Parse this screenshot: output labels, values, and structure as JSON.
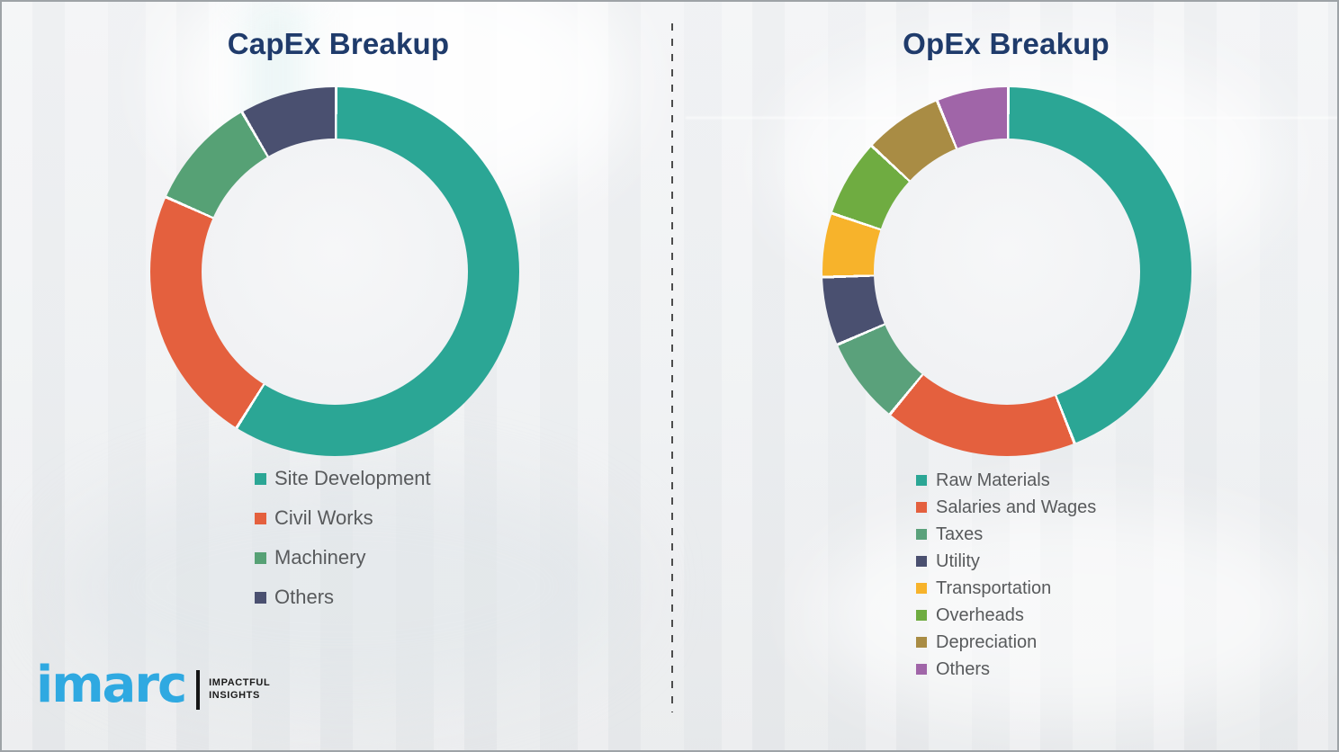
{
  "chart_data": [
    {
      "type": "pie",
      "subtype": "donut",
      "title": "CapEx Breakup",
      "labels": [
        "Site Development",
        "Civil Works",
        "Machinery",
        "Others"
      ],
      "values": [
        58.8,
        22.7,
        10.0,
        8.5
      ],
      "unit": "percent",
      "colors": [
        "#2BA695",
        "#E4603E",
        "#56A175",
        "#4A5070"
      ],
      "start_angle_deg": 0,
      "direction": "clockwise",
      "legend_position": "below-left"
    },
    {
      "type": "pie",
      "subtype": "donut",
      "title": "OpEx Breakup",
      "labels": [
        "Raw Materials",
        "Salaries and Wages",
        "Taxes",
        "Utility",
        "Transportation",
        "Overheads",
        "Depreciation",
        "Others"
      ],
      "values": [
        43.9,
        16.9,
        7.6,
        6.0,
        5.6,
        6.8,
        6.9,
        6.3
      ],
      "unit": "percent",
      "colors": [
        "#2BA695",
        "#E4603E",
        "#5AA17B",
        "#4A5070",
        "#F7B32B",
        "#6FAC41",
        "#A98C44",
        "#A065A8"
      ],
      "start_angle_deg": 0,
      "direction": "clockwise",
      "legend_position": "below-left"
    }
  ],
  "branding": {
    "logo_text": "imarc",
    "tagline_line1": "IMPACTFUL",
    "tagline_line2": "INSIGHTS",
    "logo_color": "#2FA9E1"
  }
}
